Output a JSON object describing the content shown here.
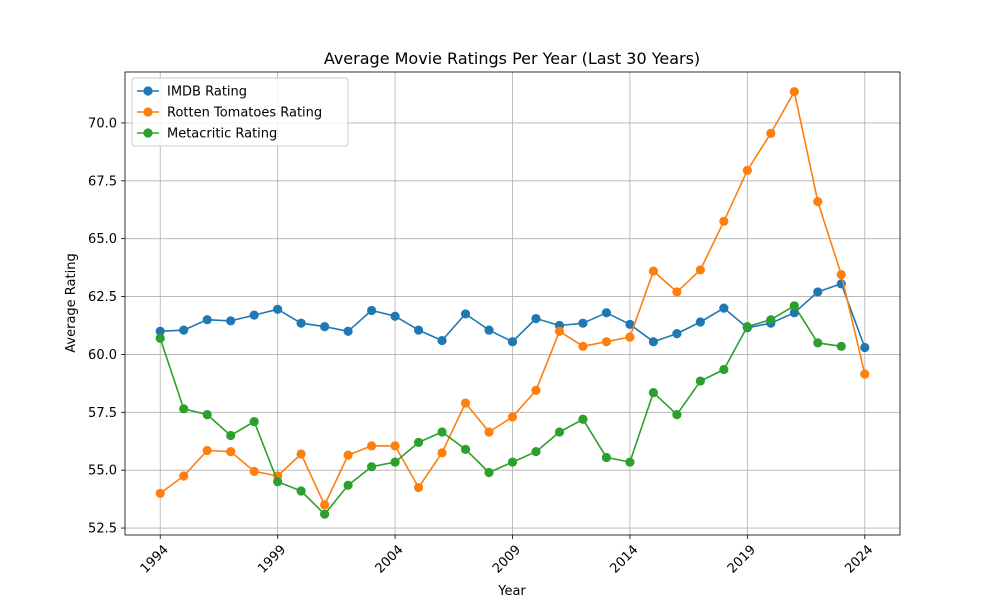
{
  "chart_data": {
    "type": "line",
    "title": "Average Movie Ratings Per Year (Last 30 Years)",
    "xlabel": "Year",
    "ylabel": "Average Rating",
    "xlim": [
      1992.5,
      2025.5
    ],
    "ylim": [
      52.2,
      72.2
    ],
    "x_ticks": [
      1994,
      1999,
      2004,
      2009,
      2014,
      2019,
      2024
    ],
    "y_ticks": [
      52.5,
      55.0,
      57.5,
      60.0,
      62.5,
      65.0,
      67.5,
      70.0
    ],
    "y_tick_labels": [
      "52.5",
      "55.0",
      "57.5",
      "60.0",
      "62.5",
      "65.0",
      "67.5",
      "70.0"
    ],
    "grid": true,
    "legend": "top-left",
    "series": [
      {
        "name": "IMDB Rating",
        "color": "#1f77b4",
        "x": [
          1994,
          1995,
          1996,
          1997,
          1998,
          1999,
          2000,
          2001,
          2002,
          2003,
          2004,
          2005,
          2006,
          2007,
          2008,
          2009,
          2010,
          2011,
          2012,
          2013,
          2014,
          2015,
          2016,
          2017,
          2018,
          2019,
          2020,
          2021,
          2022,
          2023,
          2024
        ],
        "values": [
          61.0,
          61.05,
          61.5,
          61.45,
          61.7,
          61.95,
          61.35,
          61.2,
          61.0,
          61.9,
          61.65,
          61.05,
          60.6,
          61.75,
          61.05,
          60.55,
          61.55,
          61.25,
          61.35,
          61.8,
          61.3,
          60.55,
          60.9,
          61.4,
          62.0,
          61.15,
          61.35,
          61.8,
          62.7,
          63.05,
          60.3
        ]
      },
      {
        "name": "Rotten Tomatoes Rating",
        "color": "#ff7f0e",
        "x": [
          1994,
          1995,
          1996,
          1997,
          1998,
          1999,
          2000,
          2001,
          2002,
          2003,
          2004,
          2005,
          2006,
          2007,
          2008,
          2009,
          2010,
          2011,
          2012,
          2013,
          2014,
          2015,
          2016,
          2017,
          2018,
          2019,
          2020,
          2021,
          2022,
          2023,
          2024
        ],
        "values": [
          54.0,
          54.75,
          55.85,
          55.8,
          54.95,
          54.75,
          55.7,
          53.5,
          55.65,
          56.05,
          56.05,
          54.25,
          55.75,
          57.9,
          56.65,
          57.3,
          58.45,
          61.0,
          60.35,
          60.55,
          60.75,
          63.6,
          62.7,
          63.65,
          65.75,
          67.95,
          69.55,
          71.35,
          66.6,
          63.45,
          59.15
        ]
      },
      {
        "name": "Metacritic Rating",
        "color": "#2ca02c",
        "x": [
          1994,
          1995,
          1996,
          1997,
          1998,
          1999,
          2000,
          2001,
          2002,
          2003,
          2004,
          2005,
          2006,
          2007,
          2008,
          2009,
          2010,
          2011,
          2012,
          2013,
          2014,
          2015,
          2016,
          2017,
          2018,
          2019,
          2020,
          2021,
          2022,
          2023
        ],
        "values": [
          60.7,
          57.65,
          57.4,
          56.5,
          57.1,
          54.5,
          54.1,
          53.1,
          54.35,
          55.15,
          55.35,
          56.2,
          56.65,
          55.9,
          54.9,
          55.35,
          55.8,
          56.65,
          57.2,
          55.55,
          55.35,
          58.35,
          57.4,
          58.85,
          59.35,
          61.2,
          61.5,
          62.1,
          60.5,
          60.35
        ]
      }
    ]
  }
}
